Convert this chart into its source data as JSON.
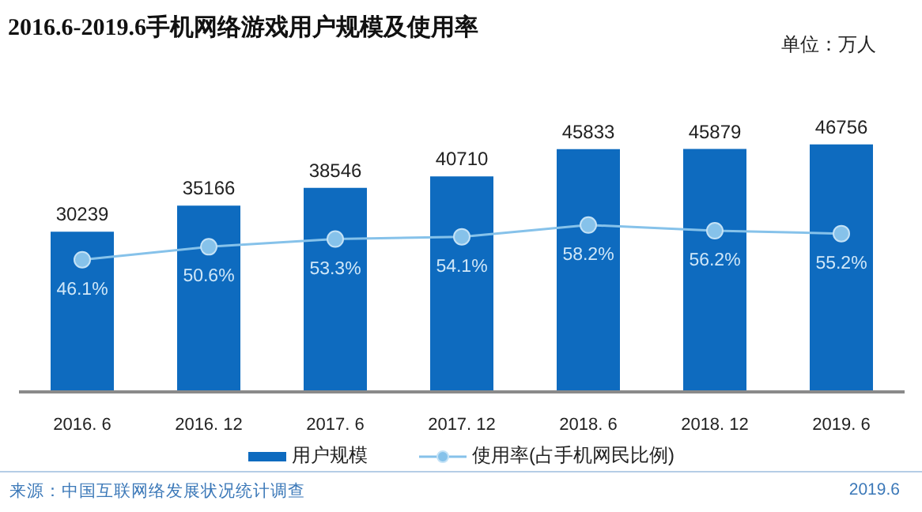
{
  "chart_data": {
    "type": "bar",
    "title": "2016.6-2019.6手机网络游戏用户规模及使用率",
    "categories": [
      "2016. 6",
      "2016. 12",
      "2017. 6",
      "2017. 12",
      "2018. 6",
      "2018. 12",
      "2019. 6"
    ],
    "series": [
      {
        "name": "用户规模",
        "color": "#0e6bbf",
        "values": [
          30239,
          35166,
          38546,
          40710,
          45833,
          45879,
          46756
        ],
        "value_labels": [
          "30239",
          "35166",
          "38546",
          "40710",
          "45833",
          "45879",
          "46756"
        ]
      },
      {
        "name": "使用率(占手机网民比例)",
        "type": "line",
        "axis": "y2",
        "color": "#86c2ea",
        "values": [
          46.1,
          50.6,
          53.3,
          54.1,
          58.2,
          56.2,
          55.2
        ],
        "value_labels": [
          "46.1%",
          "50.6%",
          "53.3%",
          "54.1%",
          "58.2%",
          "56.2%",
          "55.2%"
        ]
      }
    ],
    "annotations": [
      "单位：万人",
      "来源：中国互联网络发展状况统计调查",
      "2019.6"
    ],
    "legend": "bottom",
    "marker": "circle"
  }
}
